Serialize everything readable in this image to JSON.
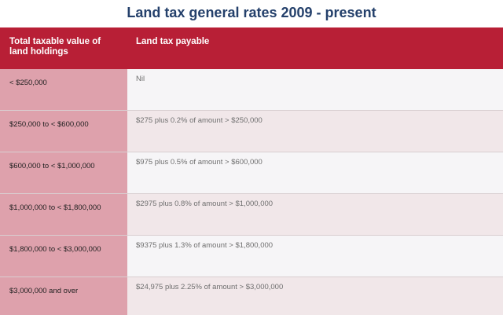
{
  "title": "Land tax general rates 2009 - present",
  "colors": {
    "title": "#24406b",
    "header_bg": "#b81f36",
    "left_col_bg": "#dea1ac",
    "row_light": "#f6f5f7",
    "row_tint": "#f1e7e9"
  },
  "table": {
    "headers": [
      "Total taxable value of land holdings",
      "Land tax payable"
    ],
    "rows": [
      {
        "range": "< $250,000",
        "rate": "Nil"
      },
      {
        "range": "$250,000 to < $600,000",
        "rate": "$275 plus 0.2% of amount > $250,000"
      },
      {
        "range": "$600,000 to < $1,000,000",
        "rate": "$975 plus 0.5% of amount > $600,000"
      },
      {
        "range": "$1,000,000 to < $1,800,000",
        "rate": "$2975 plus 0.8% of amount > $1,000,000"
      },
      {
        "range": "$1,800,000 to < $3,000,000",
        "rate": "$9375 plus 1.3% of amount > $1,800,000"
      },
      {
        "range": "$3,000,000 and over",
        "rate": "$24,975 plus 2.25% of amount > $3,000,000"
      }
    ]
  }
}
